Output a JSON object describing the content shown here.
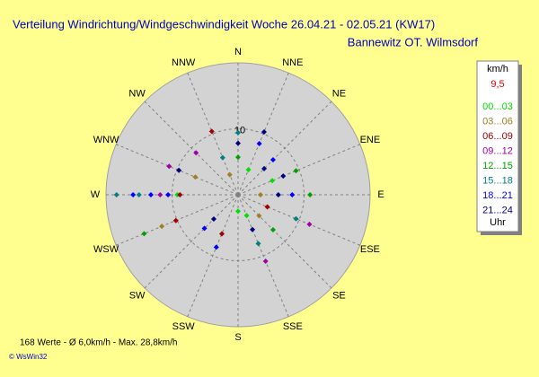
{
  "chart_data": {
    "type": "polar_scatter",
    "title": "Verteilung Windrichtung/Windgeschwindigkeit  Woche 26.04.21 - 02.05.21 (KW17)",
    "subtitle": "Bannewitz OT. Wilmsdorf",
    "categories": [
      "N",
      "NNE",
      "NE",
      "ENE",
      "E",
      "ESE",
      "SE",
      "SSE",
      "S",
      "SSW",
      "SW",
      "WSW",
      "W",
      "WNW",
      "NW",
      "NNW"
    ],
    "rlim": [
      0,
      20
    ],
    "rticks": [
      10
    ],
    "legend_title": "km/h",
    "legend_note": "9,5",
    "legend_footer": "Uhr",
    "series": [
      {
        "name": "00...03",
        "color": "#00e000",
        "x": [
          "W",
          "ENE",
          "NNE",
          "S",
          "SSE"
        ],
        "values": [
          9.2,
          5.6,
          4.1,
          2.5,
          3.4
        ]
      },
      {
        "name": "03...06",
        "color": "#a08020",
        "x": [
          "WSW",
          "WNW",
          "E",
          "SE",
          "NNW"
        ],
        "values": [
          12.5,
          7,
          3.4,
          4.5,
          3.3
        ]
      },
      {
        "name": "06...09",
        "color": "#a00000",
        "x": [
          "W",
          "WSW",
          "NNW",
          "ESE",
          "SSW"
        ],
        "values": [
          8.8,
          10.2,
          10.4,
          4.8,
          6.4
        ]
      },
      {
        "name": "09...12",
        "color": "#a000a0",
        "x": [
          "W",
          "WNW",
          "NW",
          "SSE",
          "ESE"
        ],
        "values": [
          11.8,
          11.3,
          9,
          10.9,
          11.7
        ]
      },
      {
        "name": "12...15",
        "color": "#00a000",
        "x": [
          "WSW",
          "ENE",
          "E",
          "SE",
          "N"
        ],
        "values": [
          15.4,
          9.5,
          10.9,
          7.5,
          5.7
        ]
      },
      {
        "name": "15...18",
        "color": "#008080",
        "x": [
          "W",
          "W",
          "NNW",
          "SSE",
          "N",
          "ESE"
        ],
        "values": [
          18.4,
          15,
          6.1,
          8,
          9.4,
          9.5
        ]
      },
      {
        "name": "18...21",
        "color": "#0000ff",
        "x": [
          "W",
          "W",
          "W",
          "E",
          "NE",
          "NNE",
          "SSW",
          "SW"
        ],
        "values": [
          15.9,
          13.2,
          10.6,
          8.2,
          7.5,
          8.4,
          8.6,
          7.2
        ]
      },
      {
        "name": "21...24",
        "color": "#000080",
        "x": [
          "E",
          "ENE",
          "NE",
          "NNE",
          "WNW",
          "SW",
          "N",
          "SSE"
        ],
        "values": [
          6.1,
          7.4,
          5.6,
          10.3,
          9.7,
          5.2,
          7.8,
          5.7
        ]
      }
    ]
  },
  "footer": {
    "stats": "168 Werte  -  Ø 6,0km/h  -  Max. 28,8km/h",
    "copyright": "© WsWin32"
  }
}
